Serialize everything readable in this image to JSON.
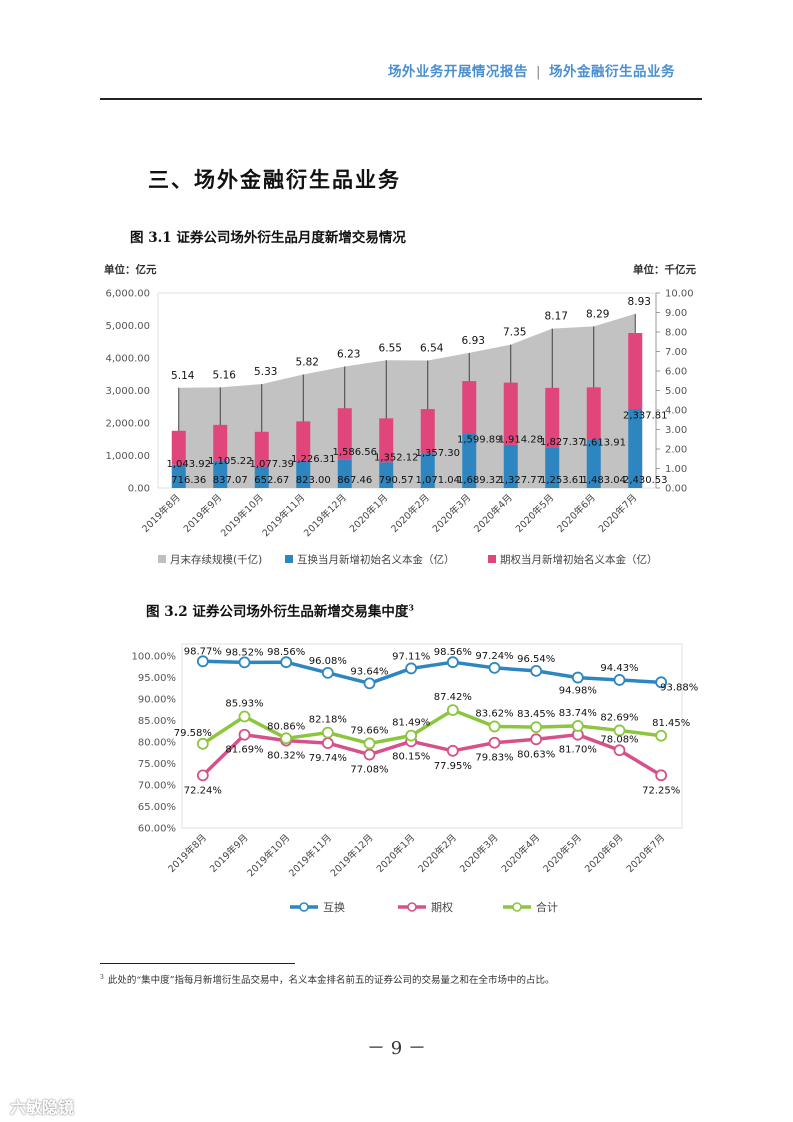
{
  "header": {
    "left": "场外业务开展情况报告",
    "sep": "|",
    "right": "场外金融衍生品业务"
  },
  "section_title": "三、场外金融衍生品业务",
  "fig1": {
    "title": "图 3.1 证券公司场外衍生品月度新增交易情况"
  },
  "fig2": {
    "title": "图 3.2 证券公司场外衍生品新增交易集中度",
    "fn_mark": "3"
  },
  "chart_data": [
    {
      "type": "bar",
      "stacked": true,
      "categories": [
        "2019年8月",
        "2019年9月",
        "2019年10月",
        "2019年11月",
        "2019年12月",
        "2020年1月",
        "2020年2月",
        "2020年3月",
        "2020年4月",
        "2020年5月",
        "2020年6月",
        "2020年7月"
      ],
      "unit_left": "单位：亿元",
      "unit_right": "单位：千亿元",
      "ylim": [
        0,
        6000
      ],
      "yticks": [
        "0.00",
        "1,000.00",
        "2,000.00",
        "3,000.00",
        "4,000.00",
        "5,000.00",
        "6,000.00"
      ],
      "y2lim": [
        0,
        10
      ],
      "y2ticks": [
        "0.00",
        "1.00",
        "2.00",
        "3.00",
        "4.00",
        "5.00",
        "6.00",
        "7.00",
        "8.00",
        "9.00",
        "10.00"
      ],
      "series": [
        {
          "name": "月末存续规模(千亿)",
          "type": "area",
          "axis": "right",
          "color": "#bfbfbf",
          "values": [
            5.14,
            5.16,
            5.33,
            5.82,
            6.23,
            6.55,
            6.54,
            6.93,
            7.35,
            8.17,
            8.29,
            8.93
          ],
          "labels": [
            "5.14",
            "5.16",
            "5.33",
            "5.82",
            "6.23",
            "6.55",
            "6.54",
            "6.93",
            "7.35",
            "8.17",
            "8.29",
            "8.93"
          ]
        },
        {
          "name": "互换当月新增初始名义本金（亿）",
          "type": "bar",
          "axis": "left",
          "color": "#2e86c1",
          "values": [
            716.36,
            837.07,
            652.67,
            823.0,
            867.46,
            790.57,
            1071.04,
            1689.32,
            1327.77,
            1253.61,
            1483.04,
            2430.53
          ],
          "labels": [
            "716.36",
            "837.07",
            "652.67",
            "823.00",
            "867.46",
            "790.57",
            "1,071.04",
            "1,689.32",
            "1,327.77",
            "1,253.61",
            "1,483.04",
            "2,430.53"
          ]
        },
        {
          "name": "期权当月新增初始名义本金（亿）",
          "type": "bar",
          "axis": "left",
          "color": "#e0457b",
          "values": [
            1043.92,
            1105.22,
            1077.39,
            1226.31,
            1586.56,
            1352.12,
            1357.3,
            1599.89,
            1914.28,
            1827.37,
            1613.91,
            2337.81
          ],
          "labels": [
            "1,043.92",
            "1,105.22",
            "1,077.39",
            "1,226.31",
            "1,586.56",
            "1,352.12",
            "1,357.30",
            "1,599.89",
            "1,914.28",
            "1,827.37",
            "1,613.91",
            "2,337.81"
          ]
        }
      ]
    },
    {
      "type": "line",
      "categories": [
        "2019年8月",
        "2019年9月",
        "2019年10月",
        "2019年11月",
        "2019年12月",
        "2020年1月",
        "2020年2月",
        "2020年3月",
        "2020年4月",
        "2020年5月",
        "2020年6月",
        "2020年7月"
      ],
      "ylim": [
        60,
        100
      ],
      "yticks": [
        "60.00%",
        "65.00%",
        "70.00%",
        "75.00%",
        "80.00%",
        "85.00%",
        "90.00%",
        "95.00%",
        "100.00%"
      ],
      "series": [
        {
          "name": "互换",
          "color": "#2e86c1",
          "values": [
            98.77,
            98.52,
            98.56,
            96.08,
            93.64,
            97.11,
            98.56,
            97.24,
            96.54,
            94.98,
            94.43,
            93.88
          ],
          "labels": [
            "98.77%",
            "98.52%",
            "98.56%",
            "96.08%",
            "93.64%",
            "97.11%",
            "98.56%",
            "97.24%",
            "96.54%",
            "94.98%",
            "94.43%",
            "93.88%"
          ]
        },
        {
          "name": "期权",
          "color": "#d6508a",
          "values": [
            72.24,
            81.69,
            80.32,
            79.74,
            77.08,
            80.15,
            77.95,
            79.83,
            80.63,
            81.7,
            78.08,
            72.25
          ],
          "labels": [
            "72.24%",
            "81.69%",
            "80.32%",
            "79.74%",
            "77.08%",
            "80.15%",
            "77.95%",
            "79.83%",
            "80.63%",
            "81.70%",
            "78.08%",
            "72.25%"
          ]
        },
        {
          "name": "合计",
          "color": "#8cc63f",
          "values": [
            79.58,
            85.93,
            80.86,
            82.18,
            79.66,
            81.49,
            87.42,
            83.62,
            83.45,
            83.74,
            82.69,
            81.45
          ],
          "labels": [
            "79.58%",
            "85.93%",
            "80.86%",
            "82.18%",
            "79.66%",
            "81.49%",
            "87.42%",
            "83.62%",
            "83.45%",
            "83.74%",
            "82.69%",
            "81.45%"
          ]
        }
      ]
    }
  ],
  "footnote": {
    "mark": "3",
    "text": "此处的“集中度”指每月新增衍生品交易中，名义本金排名前五的证券公司的交易量之和在全市场中的占比。"
  },
  "page_number": "－ 9 －",
  "watermark": "六敏隐镜"
}
